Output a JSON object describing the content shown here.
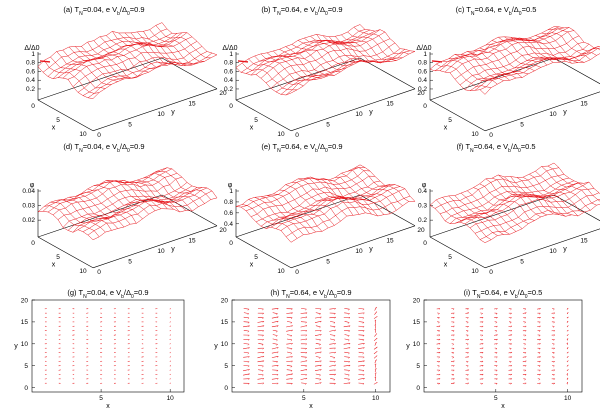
{
  "figure": {
    "subtitle_prefix": "T",
    "subtitle_sub_N": "N",
    "subtitle_join": ", e V",
    "subtitle_sub_0": "0",
    "subtitle_sub_b": "b",
    "delta_symbol": "Δ",
    "phi_symbol": "φ"
  },
  "chart_data": [
    {
      "id": "a",
      "type": "surface",
      "label": "(a)",
      "T_N": "0.04",
      "Vb_over_D0": "0.9",
      "zlabel": "Δ/Δ0",
      "zticks": [
        "1",
        "0.8",
        "0.6",
        "0.4",
        "0.2"
      ],
      "xlabel": "x",
      "ylabel": "y",
      "xticks": [
        "0",
        "5",
        "10"
      ],
      "yticks": [
        "0",
        "5",
        "10",
        "15",
        "20"
      ],
      "surface_level": "0.8-1.0"
    },
    {
      "id": "b",
      "type": "surface",
      "label": "(b)",
      "T_N": "0.64",
      "Vb_over_D0": "0.9",
      "zlabel": "Δ/Δ0",
      "zticks": [
        "1",
        "0.8",
        "0.6",
        "0.4",
        "0.2"
      ],
      "xlabel": "x",
      "ylabel": "y",
      "xticks": [
        "0",
        "5",
        "10"
      ],
      "yticks": [
        "0",
        "5",
        "10",
        "15",
        "20"
      ],
      "surface_level": "0.5-0.9"
    },
    {
      "id": "c",
      "type": "surface",
      "label": "(c)",
      "T_N": "0.64",
      "Vb_over_D0": "0.5",
      "zlabel": "Δ/Δ0",
      "zticks": [
        "1",
        "0.8",
        "0.6",
        "0.4",
        "0.2"
      ],
      "xlabel": "x",
      "ylabel": "y",
      "xticks": [
        "0",
        "5",
        "10"
      ],
      "yticks": [
        "0",
        "5",
        "10",
        "15",
        "20"
      ],
      "surface_level": "0.5-0.9"
    },
    {
      "id": "d",
      "type": "surface",
      "label": "(d)",
      "T_N": "0.04",
      "Vb_over_D0": "0.9",
      "zlabel": "φ",
      "zticks": [
        "0.04",
        "0.03",
        "0.02"
      ],
      "xlabel": "x",
      "ylabel": "y",
      "xticks": [
        "0",
        "5",
        "10"
      ],
      "yticks": [
        "0",
        "5",
        "10",
        "15",
        "20"
      ]
    },
    {
      "id": "e",
      "type": "surface",
      "label": "(e)",
      "T_N": "0.64",
      "Vb_over_D0": "0.9",
      "zlabel": "φ",
      "zticks": [
        "1",
        "0.8",
        "0.6",
        "0.4"
      ],
      "xlabel": "x",
      "ylabel": "y",
      "xticks": [
        "0",
        "5",
        "10"
      ],
      "yticks": [
        "0",
        "5",
        "10",
        "15",
        "20"
      ]
    },
    {
      "id": "f",
      "type": "surface",
      "label": "(f)",
      "T_N": "0.64",
      "Vb_over_D0": "0.5",
      "zlabel": "φ",
      "zticks": [
        "0.4",
        "0.3",
        "0.2"
      ],
      "xlabel": "x",
      "ylabel": "y",
      "xticks": [
        "0",
        "5",
        "10"
      ],
      "yticks": [
        "0",
        "5",
        "10",
        "15",
        "20"
      ]
    },
    {
      "id": "g",
      "type": "vector_field",
      "label": "(g)",
      "T_N": "0.04",
      "Vb_over_D0": "0.9",
      "xlabel": "x",
      "ylabel": "y",
      "xticks": [
        "5",
        "10"
      ],
      "yticks": [
        "0",
        "5",
        "10",
        "15",
        "20"
      ],
      "xlim": [
        0,
        11
      ],
      "ylim": [
        -1,
        20
      ],
      "density": "sparse"
    },
    {
      "id": "h",
      "type": "vector_field",
      "label": "(h)",
      "T_N": "0.64",
      "Vb_over_D0": "0.9",
      "xlabel": "x",
      "ylabel": "y",
      "xticks": [
        "5",
        "10"
      ],
      "yticks": [
        "0",
        "5",
        "10",
        "15",
        "20"
      ],
      "xlim": [
        0,
        11
      ],
      "ylim": [
        -1,
        20
      ],
      "density": "dense"
    },
    {
      "id": "i",
      "type": "vector_field",
      "label": "(i)",
      "T_N": "0.64",
      "Vb_over_D0": "0.5",
      "xlabel": "x",
      "ylabel": "y",
      "xticks": [
        "5",
        "10"
      ],
      "yticks": [
        "0",
        "5",
        "10",
        "15",
        "20"
      ],
      "xlim": [
        0,
        11
      ],
      "ylim": [
        -1,
        20
      ],
      "density": "medium"
    }
  ]
}
